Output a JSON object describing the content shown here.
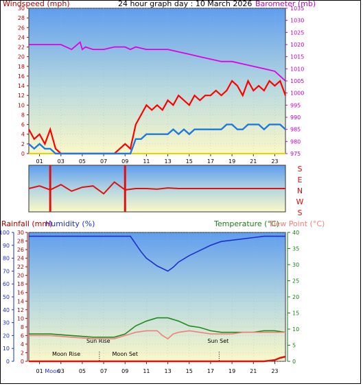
{
  "chart_data": [
    {
      "type": "line",
      "title": "24 hour graph day : 10 March 2026",
      "ylabel_left": "Windspeed (mph)",
      "ylabel_right": "Barometer (mb)",
      "x_ticks": [
        "01",
        "03",
        "05",
        "07",
        "09",
        "11",
        "13",
        "15",
        "17",
        "19",
        "21",
        "23"
      ],
      "xlim": [
        0,
        24
      ],
      "ylim_left": [
        0,
        30
      ],
      "ylim_right": [
        975,
        1035
      ],
      "left_ticks": [
        "0",
        "2",
        "4",
        "6",
        "8",
        "10",
        "12",
        "14",
        "16",
        "18",
        "20",
        "22",
        "24",
        "26",
        "28",
        "30"
      ],
      "right_ticks": [
        "975",
        "980",
        "985",
        "990",
        "995",
        "1000",
        "1005",
        "1010",
        "1015",
        "1020",
        "1025",
        "1030",
        "1035"
      ],
      "gust": {
        "x": [
          0,
          0.5,
          1,
          1.5,
          2,
          2.5,
          3,
          4,
          5,
          6,
          7,
          8,
          8.5,
          9,
          9.5,
          10,
          10.5,
          11,
          11.5,
          12,
          12.5,
          13,
          13.5,
          14,
          14.5,
          15,
          15.5,
          16,
          16.5,
          17,
          17.5,
          18,
          18.5,
          19,
          19.5,
          20,
          20.5,
          21,
          21.5,
          22,
          22.5,
          23,
          23.5,
          24
        ],
        "values": [
          5,
          3,
          4,
          2,
          5,
          1,
          0,
          0,
          0,
          0,
          0,
          0,
          1,
          2,
          1,
          6,
          8,
          10,
          9,
          10,
          9,
          11,
          10,
          12,
          11,
          10,
          12,
          11,
          12,
          12,
          13,
          12,
          13,
          15,
          14,
          12,
          15,
          13,
          14,
          13,
          15,
          14,
          15,
          12
        ]
      },
      "wind_avg": {
        "x": [
          0,
          0.5,
          1,
          1.5,
          2,
          2.5,
          3,
          4,
          5,
          6,
          7,
          8,
          8.5,
          9,
          9.5,
          10,
          10.5,
          11,
          11.5,
          12,
          12.5,
          13,
          13.5,
          14,
          14.5,
          15,
          15.5,
          16,
          16.5,
          17,
          17.5,
          18,
          18.5,
          19,
          19.5,
          20,
          20.5,
          21,
          21.5,
          22,
          22.5,
          23,
          23.5,
          24
        ],
        "values": [
          2,
          1,
          2,
          1,
          1,
          0,
          0,
          0,
          0,
          0,
          0,
          0,
          0,
          0,
          0,
          3,
          3,
          4,
          4,
          4,
          4,
          4,
          5,
          4,
          5,
          4,
          5,
          5,
          5,
          5,
          5,
          5,
          6,
          6,
          5,
          5,
          6,
          6,
          6,
          5,
          6,
          6,
          6,
          5
        ]
      },
      "barometer": {
        "x": [
          0,
          1,
          2,
          3,
          4,
          4.8,
          5,
          5.3,
          6,
          7,
          8,
          9,
          9.5,
          10,
          11,
          12,
          13,
          14,
          15,
          16,
          17,
          18,
          19,
          20,
          21,
          22,
          23,
          23.5,
          24
        ],
        "values": [
          1020,
          1020,
          1020,
          1020,
          1018,
          1021,
          1018,
          1019,
          1018,
          1018,
          1019,
          1019,
          1018,
          1019,
          1018,
          1018,
          1018,
          1017,
          1016,
          1015,
          1014,
          1013,
          1013,
          1012,
          1011,
          1010,
          1009,
          1007,
          1005
        ]
      }
    },
    {
      "type": "line",
      "title": "",
      "y_ticks": [
        "S",
        "E",
        "N",
        "W",
        "S"
      ],
      "x": [
        0,
        1,
        2,
        3,
        4,
        5,
        6,
        7,
        8,
        9,
        10,
        11,
        12,
        13,
        14,
        15,
        16,
        17,
        18,
        19,
        20,
        21,
        22,
        23,
        24
      ],
      "values": [
        180,
        200,
        170,
        210,
        160,
        190,
        200,
        140,
        230,
        170,
        180,
        180,
        175,
        185,
        180,
        180,
        180,
        180,
        180,
        180,
        180,
        180,
        180,
        180,
        180
      ],
      "spikes": [
        2,
        9
      ]
    },
    {
      "type": "line",
      "title": "",
      "labels_left": [
        "Rainfall (mm)",
        "Humidity (%)"
      ],
      "labels_right": [
        "Temperature (°C)",
        "Dew Point (°C)"
      ],
      "rain_ticks": [
        "0",
        "2",
        "4",
        "6",
        "8",
        "10",
        "12",
        "14",
        "16",
        "18",
        "20",
        "22",
        "24",
        "26",
        "28",
        "30"
      ],
      "humidity_ticks": [
        "0",
        "10",
        "20",
        "30",
        "40",
        "50",
        "60",
        "70",
        "80",
        "90",
        "100"
      ],
      "temp_ticks": [
        "0",
        "5",
        "10",
        "15",
        "20",
        "25",
        "30",
        "35",
        "40"
      ],
      "x_ticks": [
        "01",
        "Moon",
        "03",
        "05",
        "07",
        "09",
        "11",
        "13",
        "15",
        "17",
        "19",
        "21",
        "23"
      ],
      "xlim": [
        0,
        24
      ],
      "ylim_rain": [
        0,
        30
      ],
      "ylim_humidity": [
        0,
        100
      ],
      "ylim_temp": [
        0,
        40
      ],
      "annotations": [
        {
          "text": "Moon Rise",
          "x": 3.5
        },
        {
          "text": "Sun Rise",
          "x": 6.5
        },
        {
          "text": "Moon Set",
          "x": 9.0
        },
        {
          "text": "Sun Set",
          "x": 17.7
        }
      ],
      "markers_x": [
        6.6,
        17.8
      ],
      "humidity": {
        "x": [
          0,
          2,
          4,
          6,
          8,
          9.5,
          10,
          10.5,
          11,
          11.5,
          12,
          12.5,
          13,
          13.5,
          14,
          15,
          16,
          17,
          18,
          19,
          20,
          21,
          22,
          23,
          24
        ],
        "values": [
          97,
          97,
          97,
          97,
          97,
          97,
          91,
          85,
          80,
          77,
          74,
          72,
          70,
          73,
          77,
          82,
          86,
          90,
          93,
          94,
          95,
          96,
          97,
          97,
          97
        ],
        "color": "#1e2fc8"
      },
      "temperature": {
        "x": [
          0,
          2,
          4,
          6,
          7,
          8,
          9,
          10,
          11,
          12,
          13,
          14,
          15,
          16,
          17,
          18,
          19,
          20,
          21,
          22,
          23,
          24
        ],
        "values": [
          8.5,
          8.5,
          8,
          7.5,
          7.5,
          7.5,
          8.5,
          11,
          12.5,
          13.5,
          13.5,
          12.5,
          11,
          10.5,
          9.5,
          9,
          9,
          9,
          9,
          9.5,
          9.5,
          9
        ],
        "color": "#1e8a1e"
      },
      "dew_point": {
        "x": [
          0,
          2,
          4,
          6,
          7,
          8,
          9,
          10,
          11,
          12,
          12.5,
          13,
          13.5,
          14,
          15,
          16,
          17,
          18,
          19,
          20,
          21,
          22,
          23,
          24
        ],
        "values": [
          8,
          8,
          7.5,
          7,
          7,
          7,
          8,
          9,
          9.5,
          9.5,
          8,
          7,
          8.5,
          9,
          9.5,
          9,
          8.5,
          8.5,
          8.5,
          9,
          9,
          9,
          9,
          9
        ],
        "color": "#f08080"
      },
      "rainfall": {
        "x": [
          0,
          22,
          23,
          23.5,
          24
        ],
        "values": [
          0,
          0,
          0.3,
          0.8,
          1.1
        ],
        "color": "#e01010"
      }
    }
  ]
}
